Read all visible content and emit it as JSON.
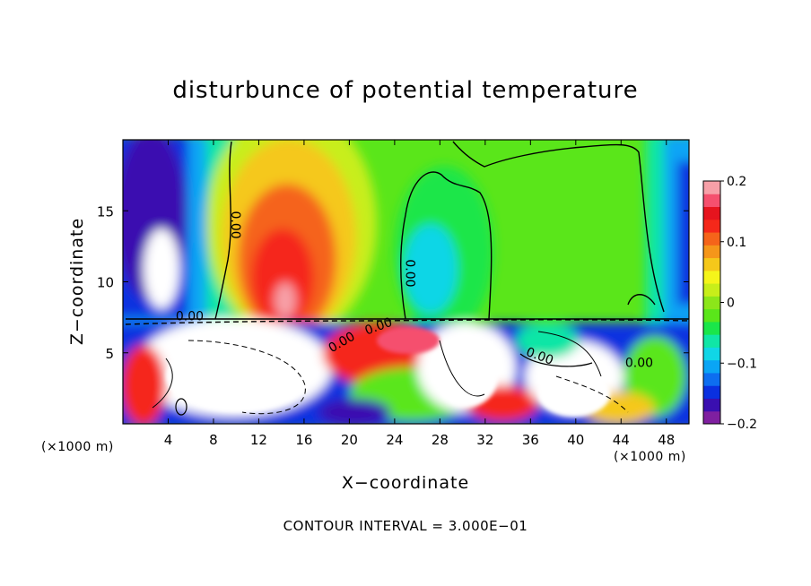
{
  "chart_data": {
    "type": "heatmap",
    "title": "disturbunce of potential temperature",
    "xlabel": "X−coordinate",
    "ylabel": "Z−coordinate",
    "x_unit": "(×1000 m)",
    "x_unit_right": "(×1000 m)",
    "note": "CONTOUR INTERVAL = 3.000E−01",
    "xlim": [
      0,
      50
    ],
    "ylim": [
      0,
      20
    ],
    "x_ticks": [
      4,
      8,
      12,
      16,
      20,
      24,
      28,
      32,
      36,
      40,
      44,
      48
    ],
    "x_tick_labels": [
      "4",
      "8",
      "12",
      "16",
      "20",
      "24",
      "28",
      "32",
      "36",
      "40",
      "44",
      "48"
    ],
    "y_ticks": [
      5,
      10,
      15
    ],
    "y_tick_labels": [
      "5",
      "10",
      "15"
    ],
    "colorbar": {
      "range": [
        -0.2,
        0.2
      ],
      "ticks": [
        0.2,
        0.1,
        0,
        -0.1,
        -0.2
      ],
      "tick_labels": [
        "0.2",
        "0.1",
        "0",
        "−0.1",
        "−0.2"
      ],
      "colors": [
        "#7f1fa0",
        "#3a0fb0",
        "#0a30e0",
        "#0d6ef0",
        "#0aa5f5",
        "#10d6e6",
        "#10e6a6",
        "#1ae64a",
        "#5ae61a",
        "#8ce61a",
        "#c8ee1a",
        "#f5f51a",
        "#f5c81a",
        "#f5961a",
        "#f5641a",
        "#f5281a",
        "#e6141e",
        "#f5506e",
        "#f7a0a8"
      ]
    },
    "contour_labels": [
      {
        "text": "0.00",
        "x": 9.6,
        "z": 14.0,
        "rotate": 90
      },
      {
        "text": "0.00",
        "x": 25.0,
        "z": 10.6,
        "rotate": 90
      },
      {
        "text": "0.00",
        "x": 5.9,
        "z": 7.3,
        "rotate": 0
      },
      {
        "text": "0.00",
        "x": 19.5,
        "z": 5.5,
        "rotate": -30
      },
      {
        "text": "0.00",
        "x": 22.7,
        "z": 6.6,
        "rotate": -20
      },
      {
        "text": "0.00",
        "x": 36.7,
        "z": 4.5,
        "rotate": 20
      },
      {
        "text": "0.00",
        "x": 45.6,
        "z": 4.0,
        "rotate": 0
      }
    ]
  }
}
